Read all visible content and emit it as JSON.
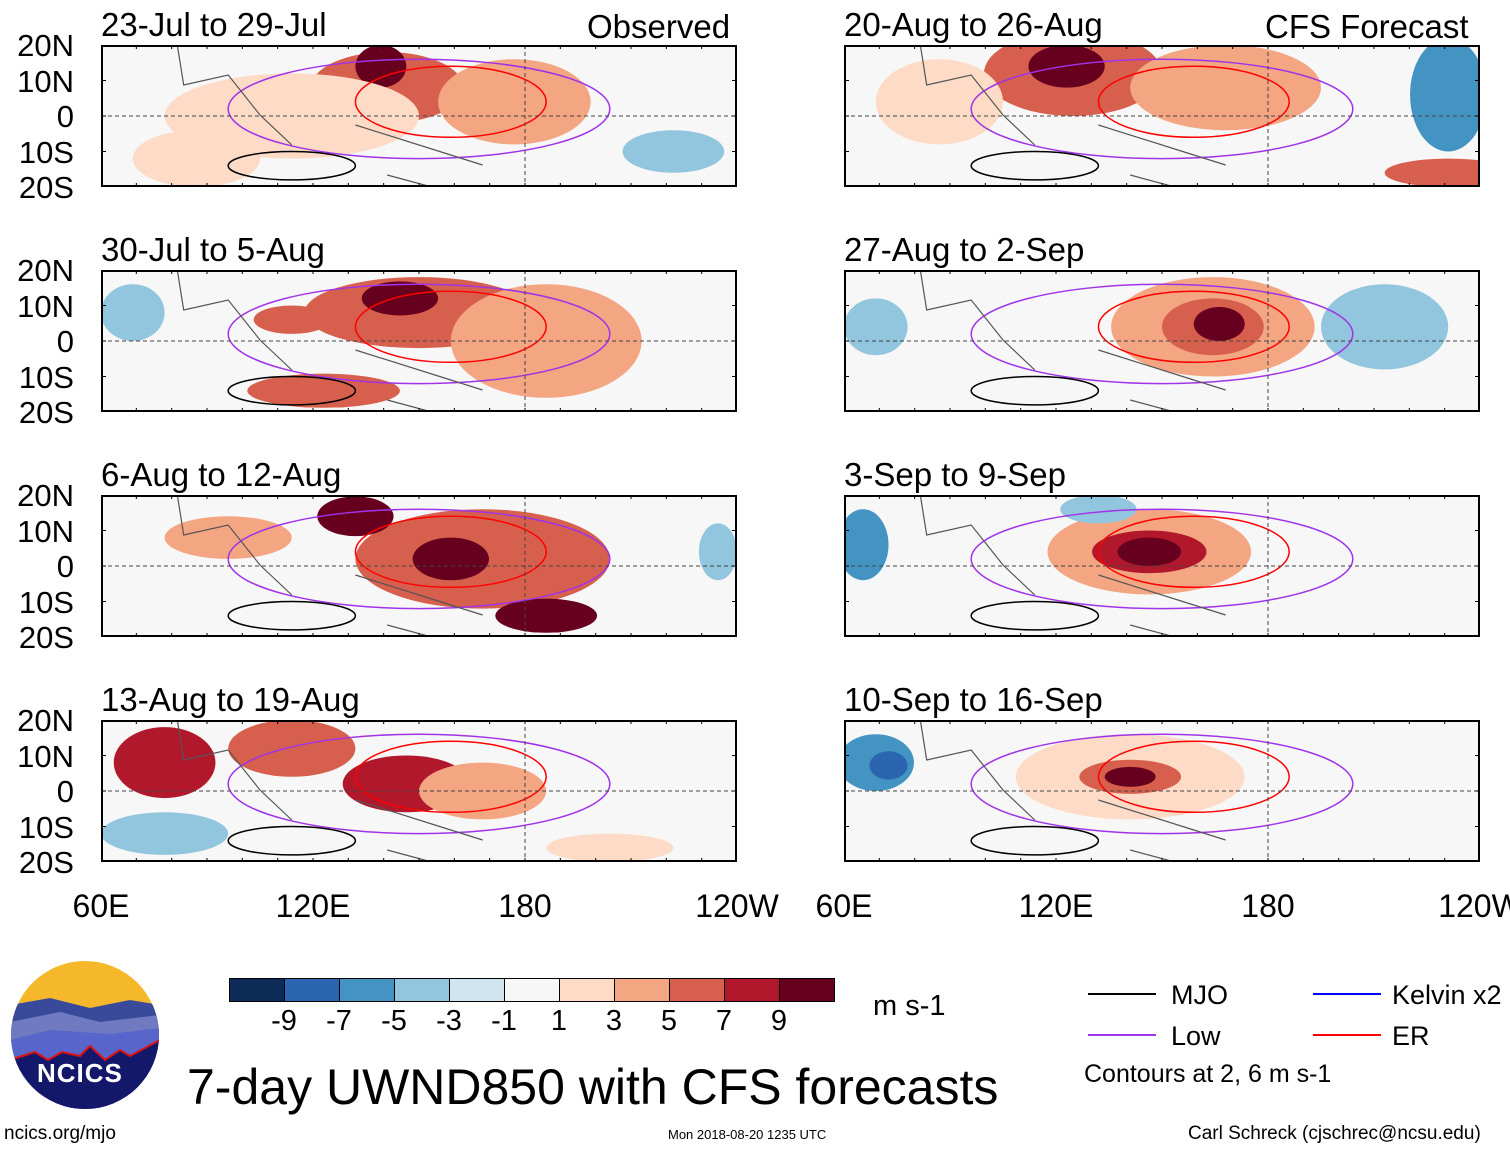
{
  "headers": {
    "observed": "Observed",
    "forecast": "CFS Forecast"
  },
  "panels": [
    {
      "title": "23-Jul to 29-Jul",
      "column": "observed"
    },
    {
      "title": "30-Jul to 5-Aug",
      "column": "observed"
    },
    {
      "title": "6-Aug to 12-Aug",
      "column": "observed"
    },
    {
      "title": "13-Aug to 19-Aug",
      "column": "observed"
    },
    {
      "title": "20-Aug to 26-Aug",
      "column": "forecast"
    },
    {
      "title": "27-Aug to 2-Sep",
      "column": "forecast"
    },
    {
      "title": "3-Sep to 9-Sep",
      "column": "forecast"
    },
    {
      "title": "10-Sep to 16-Sep",
      "column": "forecast"
    }
  ],
  "lat_labels": [
    "20N",
    "10N",
    "0",
    "10S",
    "20S"
  ],
  "lon_labels": [
    "60E",
    "120E",
    "180",
    "120W"
  ],
  "colorbar": {
    "ticks": [
      "-9",
      "-7",
      "-5",
      "-3",
      "-1",
      "1",
      "3",
      "5",
      "7",
      "9"
    ],
    "colors": [
      "#0d2b56",
      "#2b65b0",
      "#4393c3",
      "#92c5de",
      "#d1e5f0",
      "#f7f7f7",
      "#fddbc7",
      "#f4a582",
      "#d6604d",
      "#b2182b",
      "#67001f"
    ],
    "units": "m s-1"
  },
  "legend": {
    "items": [
      {
        "label": "MJO",
        "color": "#000000"
      },
      {
        "label": "Low",
        "color": "#a033e8"
      },
      {
        "label": "Kelvin x2",
        "color": "#0000ff"
      },
      {
        "label": "ER",
        "color": "#ff0000"
      }
    ],
    "note": "Contours at 2, 6 m s-1"
  },
  "title": "7-day UWND850 with CFS forecasts",
  "logo_text": "NCICS",
  "url": "ncics.org/mjo",
  "timestamp": "Mon 2018-08-20 1235 UTC",
  "credit": "Carl Schreck (cjschrec@ncsu.edu)"
}
